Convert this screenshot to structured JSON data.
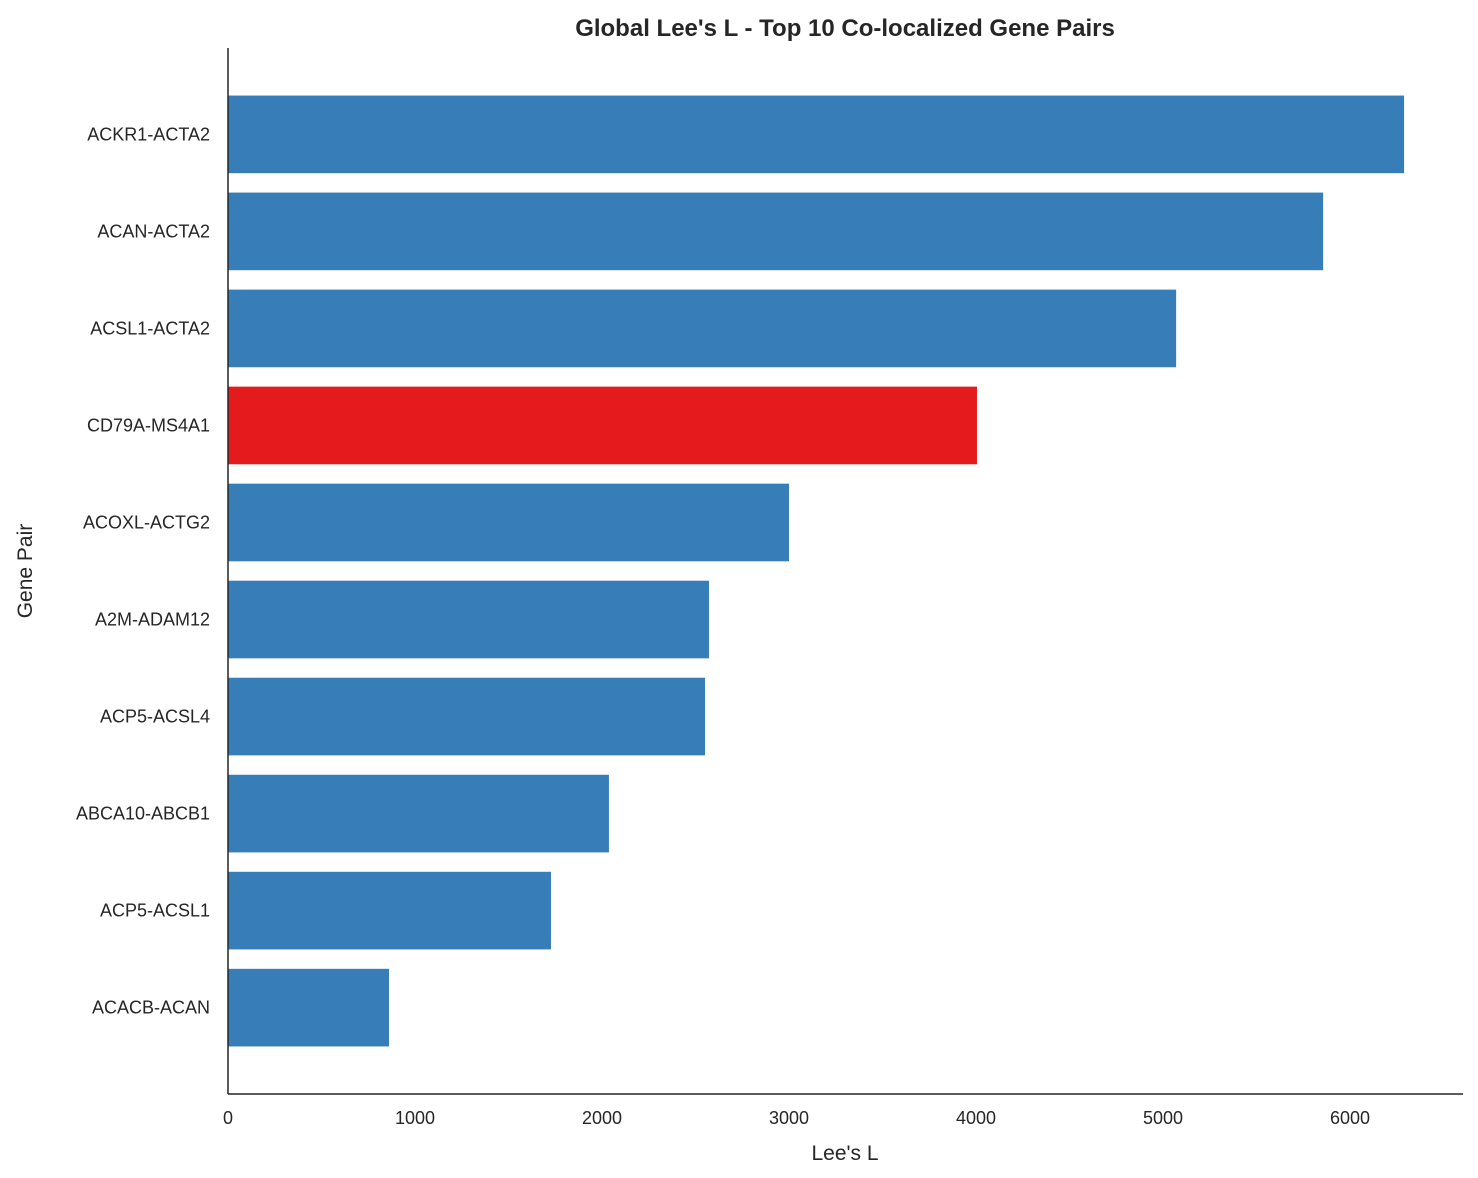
{
  "chart_data": {
    "type": "bar",
    "orientation": "horizontal",
    "title": "Global Lee's L - Top 10 Co-localized Gene Pairs",
    "xlabel": "Lee's L",
    "ylabel": "Gene Pair",
    "categories": [
      "ACKR1-ACTA2",
      "ACAN-ACTA2",
      "ACSL1-ACTA2",
      "CD79A-MS4A1",
      "ACOXL-ACTG2",
      "A2M-ADAM12",
      "ACP5-ACSL4",
      "ABCA10-ABCB1",
      "ACP5-ACSL1",
      "ACACB-ACAN"
    ],
    "values": [
      6289,
      5856,
      5070,
      4005,
      3000,
      2572,
      2551,
      2037,
      1727,
      861
    ],
    "highlight": [
      "CD79A-MS4A1"
    ],
    "colors": {
      "default": "#377eb8",
      "highlight": "#e41a1c"
    },
    "xlim": [
      0,
      6604
    ],
    "xticks": [
      0,
      1000,
      2000,
      3000,
      4000,
      5000,
      6000
    ],
    "grid": false
  }
}
